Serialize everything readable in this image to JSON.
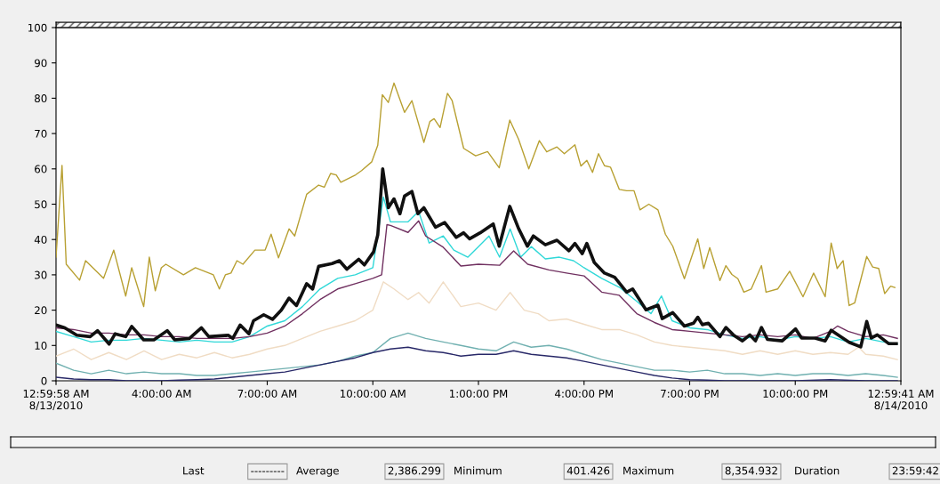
{
  "chart_data": {
    "type": "line",
    "xlim": [
      1,
      25
    ],
    "ylim": [
      0,
      100
    ],
    "xticks": [
      {
        "value": 1,
        "label": "12:59:58 AM\n8/13/2010"
      },
      {
        "value": 4,
        "label": "4:00:00 AM"
      },
      {
        "value": 7,
        "label": "7:00:00 AM"
      },
      {
        "value": 10,
        "label": "10:00:00 AM"
      },
      {
        "value": 13,
        "label": "1:00:00 PM"
      },
      {
        "value": 16,
        "label": "4:00:00 PM"
      },
      {
        "value": 19,
        "label": "7:00:00 PM"
      },
      {
        "value": 22,
        "label": "10:00:00 PM"
      },
      {
        "value": 25,
        "label": "12:59:41 AM\n8/14/2010"
      }
    ],
    "yticks": [
      0,
      10,
      20,
      30,
      40,
      50,
      60,
      70,
      80,
      90,
      100
    ],
    "grid": false,
    "marker": "none",
    "line_style": "solid",
    "annotations": [
      "Last",
      "---------",
      "Average",
      "2,386.299",
      "Minimum",
      "401.426",
      "Maximum",
      "8,354.932",
      "Duration",
      "23:59:42"
    ],
    "series": [
      {
        "color": "#b8a032",
        "x": [
          1.0,
          1.17,
          1.29,
          1.67,
          1.84,
          2.35,
          2.64,
          2.98,
          3.15,
          3.49,
          3.65,
          3.82,
          3.99,
          4.12,
          4.62,
          4.96,
          5.47,
          5.64,
          5.81,
          5.97,
          6.14,
          6.31,
          6.65,
          6.94,
          7.11,
          7.32,
          7.62,
          7.78,
          8.12,
          8.46,
          8.62,
          8.8,
          8.96,
          9.09,
          9.51,
          9.68,
          9.97,
          10.14,
          10.27,
          10.44,
          10.6,
          10.9,
          11.11,
          11.45,
          11.62,
          11.74,
          11.91,
          12.12,
          12.25,
          12.58,
          12.92,
          13.26,
          13.59,
          13.89,
          14.14,
          14.43,
          14.73,
          14.94,
          15.23,
          15.44,
          15.74,
          15.91,
          16.08,
          16.24,
          16.41,
          16.58,
          16.75,
          17.0,
          17.21,
          17.42,
          17.59,
          17.84,
          18.1,
          18.31,
          18.52,
          18.85,
          19.02,
          19.23,
          19.4,
          19.57,
          19.86,
          20.03,
          20.2,
          20.37,
          20.54,
          20.75,
          21.04,
          21.17,
          21.5,
          21.84,
          22.22,
          22.52,
          22.85,
          23.02,
          23.19,
          23.36,
          23.53,
          23.69,
          24.03,
          24.2,
          24.37,
          24.54,
          24.71,
          24.83
        ],
        "values": [
          35,
          61,
          33,
          28.5,
          34,
          29,
          37,
          24,
          32,
          21,
          35,
          25.5,
          32,
          33,
          30,
          32,
          30,
          26,
          30,
          30.5,
          34,
          33,
          37,
          37,
          41.5,
          34.8,
          43,
          41,
          52.8,
          55.4,
          54.8,
          58.7,
          58.3,
          56.2,
          58.3,
          59.5,
          62,
          66.7,
          81,
          78.8,
          84.3,
          76,
          79.3,
          67.5,
          73.4,
          74.2,
          71.7,
          81.4,
          79.4,
          65.8,
          63.7,
          64.9,
          60.3,
          73.8,
          68.4,
          60,
          68,
          64.8,
          66.2,
          64.3,
          66.8,
          60.8,
          62.4,
          59,
          64.3,
          60.9,
          60.5,
          54.2,
          53.8,
          53.8,
          48.4,
          50,
          48.4,
          41.5,
          38.1,
          28.9,
          34,
          40.2,
          31.8,
          37.7,
          28.4,
          32.6,
          30.1,
          28.9,
          25.1,
          26,
          32.6,
          25.1,
          26,
          31,
          23.8,
          30.5,
          23.8,
          39,
          31.8,
          34,
          21.3,
          22.1,
          35.2,
          32.2,
          31.8,
          24.7,
          26.8,
          26.4
        ]
      },
      {
        "color": "#101010",
        "x": [
          1.0,
          1.25,
          1.59,
          1.97,
          2.18,
          2.51,
          2.68,
          2.98,
          3.15,
          3.49,
          3.78,
          4.16,
          4.37,
          4.79,
          5.13,
          5.34,
          5.89,
          6.02,
          6.23,
          6.48,
          6.61,
          6.9,
          7.15,
          7.4,
          7.62,
          7.83,
          8.12,
          8.29,
          8.46,
          8.84,
          9.05,
          9.26,
          9.6,
          9.76,
          10.02,
          10.14,
          10.28,
          10.44,
          10.6,
          10.77,
          10.9,
          11.11,
          11.28,
          11.45,
          11.78,
          12.04,
          12.37,
          12.58,
          12.75,
          13.05,
          13.42,
          13.59,
          13.89,
          14.14,
          14.39,
          14.56,
          14.9,
          15.23,
          15.57,
          15.74,
          15.95,
          16.08,
          16.29,
          16.58,
          16.87,
          17.21,
          17.38,
          17.76,
          18.1,
          18.22,
          18.52,
          18.85,
          19.11,
          19.23,
          19.36,
          19.53,
          19.86,
          20.03,
          20.24,
          20.5,
          20.71,
          20.87,
          21.04,
          21.21,
          21.63,
          22.01,
          22.18,
          22.56,
          22.85,
          23.02,
          23.53,
          23.86,
          24.03,
          24.16,
          24.33,
          24.66,
          24.87
        ],
        "values": [
          15.8,
          15,
          12.9,
          12.5,
          14.2,
          10.4,
          13.3,
          12.5,
          15.4,
          11.6,
          11.6,
          14.2,
          11.6,
          12,
          15,
          12.5,
          12.9,
          12,
          15.8,
          13.3,
          17,
          18.7,
          17.4,
          20,
          23.4,
          21.3,
          27.5,
          26,
          32.4,
          33.2,
          34,
          31.6,
          34.4,
          32.8,
          36.5,
          41.3,
          60,
          49,
          51.5,
          47.3,
          52.3,
          53.6,
          47.3,
          49,
          43.5,
          44.8,
          40.6,
          41.9,
          40.2,
          41.9,
          44.4,
          38.1,
          49.4,
          43.1,
          38.1,
          41,
          38.5,
          39.8,
          36.8,
          38.9,
          36,
          38.9,
          33.5,
          30.5,
          29.3,
          25.1,
          26,
          20.1,
          21.4,
          17.6,
          19.3,
          15.5,
          16.3,
          18,
          15.9,
          16.3,
          12.5,
          15.1,
          13,
          11.3,
          13,
          11.3,
          15.1,
          11.7,
          11.3,
          14.7,
          12.1,
          12.1,
          11.3,
          14.3,
          10.9,
          9.6,
          16.8,
          12.1,
          13,
          10.5,
          10.5
        ]
      },
      {
        "color": "#30d8d8",
        "x": [
          1,
          1.5,
          2,
          2.5,
          3,
          3.5,
          4,
          4.5,
          5,
          5.5,
          6,
          6.5,
          7,
          7.5,
          8,
          8.5,
          9,
          9.5,
          10,
          10.3,
          10.5,
          11,
          11.3,
          11.6,
          12,
          12.3,
          12.7,
          13,
          13.3,
          13.6,
          13.9,
          14.2,
          14.5,
          14.9,
          15.3,
          15.7,
          16,
          16.5,
          17,
          17.5,
          17.9,
          18.2,
          18.5,
          19,
          19.5,
          20,
          20.5,
          21,
          21.5,
          22,
          22.5,
          23,
          23.5,
          24,
          24.5,
          24.9
        ],
        "values": [
          14,
          12.5,
          11,
          11.5,
          11.5,
          12,
          11.5,
          11,
          11.5,
          11,
          11,
          12.5,
          15.5,
          17,
          21,
          26,
          29,
          30,
          32,
          52,
          45,
          45,
          48,
          39,
          41,
          37,
          35,
          38,
          41,
          35,
          43,
          35,
          38,
          34.5,
          35,
          34,
          32,
          29,
          26.5,
          22.5,
          19,
          24,
          17,
          15,
          14.5,
          13,
          12,
          12.5,
          11.5,
          12.5,
          12,
          12.5,
          11,
          12,
          11,
          10.5
        ]
      },
      {
        "color": "#703060",
        "x": [
          1,
          1.5,
          2,
          2.5,
          3,
          3.5,
          4,
          4.5,
          5,
          5.5,
          6,
          6.5,
          7,
          7.5,
          8,
          8.5,
          9,
          9.5,
          10,
          10.25,
          10.4,
          10.5,
          11,
          11.3,
          11.5,
          12,
          12.5,
          13,
          13.6,
          14,
          14.4,
          15,
          15.5,
          16,
          16.5,
          17,
          17.5,
          18,
          18.5,
          19,
          19.5,
          20,
          20.5,
          21,
          21.5,
          22,
          22.5,
          23,
          23.2,
          23.5,
          24,
          24.5,
          24.9
        ],
        "values": [
          15,
          14.5,
          13.5,
          13.5,
          13,
          13,
          12.5,
          12.5,
          12,
          12,
          12,
          12.5,
          13.5,
          15.5,
          19,
          23,
          26,
          27.5,
          29,
          30,
          44.2,
          44,
          42,
          45.3,
          41,
          37.8,
          32.5,
          33,
          32.7,
          36.8,
          33,
          31.4,
          30.5,
          29.7,
          25.1,
          24.2,
          19,
          16.5,
          14.5,
          14,
          13.5,
          13,
          12.5,
          13,
          12.5,
          13,
          12,
          14,
          15.5,
          14,
          12.5,
          13,
          12
        ]
      },
      {
        "color": "#f0dcc4",
        "x": [
          1,
          1.5,
          2,
          2.5,
          3,
          3.5,
          4,
          4.5,
          5,
          5.5,
          6,
          6.5,
          7,
          7.5,
          8,
          8.5,
          9,
          9.5,
          10,
          10.3,
          10.6,
          11,
          11.3,
          11.6,
          12,
          12.5,
          13,
          13.5,
          13.9,
          14.3,
          14.7,
          15,
          15.5,
          16,
          16.5,
          17,
          17.5,
          18,
          18.5,
          19,
          19.5,
          20,
          20.5,
          21,
          21.5,
          22,
          22.5,
          23,
          23.5,
          23.8,
          24,
          24.5,
          24.9
        ],
        "values": [
          7,
          9,
          6,
          8,
          6,
          8.5,
          6,
          7.5,
          6.5,
          8,
          6.5,
          7.5,
          9,
          10,
          12,
          14,
          15.5,
          17,
          20,
          28,
          26,
          23,
          25,
          22,
          28,
          21,
          22,
          20,
          25,
          20,
          19,
          17,
          17.5,
          16,
          14.5,
          14.5,
          13,
          11,
          10,
          9.5,
          9,
          8.5,
          7.5,
          8.5,
          7.5,
          8.5,
          7.5,
          8,
          7.5,
          9.5,
          7.5,
          7,
          6
        ]
      },
      {
        "color": "#70b0b0",
        "x": [
          1,
          1.5,
          2,
          2.5,
          3,
          3.5,
          4,
          4.5,
          5,
          5.5,
          6,
          6.5,
          7,
          7.5,
          8,
          8.5,
          9,
          9.5,
          10,
          10.5,
          11,
          11.5,
          12,
          12.5,
          13,
          13.5,
          14,
          14.5,
          15,
          15.5,
          16,
          16.5,
          17,
          17.5,
          18,
          18.5,
          19,
          19.5,
          20,
          20.5,
          21,
          21.5,
          22,
          22.5,
          23,
          23.5,
          24,
          24.5,
          24.9
        ],
        "values": [
          5,
          3,
          2,
          3,
          2,
          2.5,
          2,
          2,
          1.5,
          1.5,
          2,
          2.5,
          3,
          3.5,
          4,
          4.5,
          5.5,
          7,
          8,
          12,
          13.5,
          12,
          11,
          10,
          9,
          8.5,
          11,
          9.5,
          10,
          9,
          7.5,
          6,
          5,
          4,
          3,
          3,
          2.5,
          3,
          2,
          2,
          1.5,
          2,
          1.5,
          2,
          2,
          1.5,
          2,
          1.5,
          1
        ]
      },
      {
        "color": "#282868",
        "x": [
          1,
          1.5,
          2,
          2.5,
          3,
          3.5,
          4,
          4.5,
          5,
          5.5,
          6,
          6.5,
          7,
          7.5,
          8,
          8.5,
          9,
          9.5,
          10,
          10.5,
          11,
          11.5,
          12,
          12.5,
          13,
          13.5,
          14,
          14.5,
          15,
          15.5,
          16,
          16.5,
          17,
          17.5,
          18,
          18.5,
          19,
          19.5,
          20,
          21,
          22,
          23,
          24,
          24.9
        ],
        "values": [
          1,
          0.5,
          0.3,
          0.3,
          0,
          0,
          0,
          0.2,
          0.3,
          0.5,
          1,
          1.5,
          2,
          2.5,
          3.5,
          4.5,
          5.5,
          6.5,
          8,
          9,
          9.5,
          8.5,
          8,
          7,
          7.5,
          7.5,
          8.5,
          7.5,
          7,
          6.5,
          5.5,
          4.5,
          3.5,
          2.5,
          1.5,
          0.8,
          0.3,
          0.2,
          0,
          0,
          0,
          0.3,
          0,
          0
        ]
      }
    ]
  }
}
